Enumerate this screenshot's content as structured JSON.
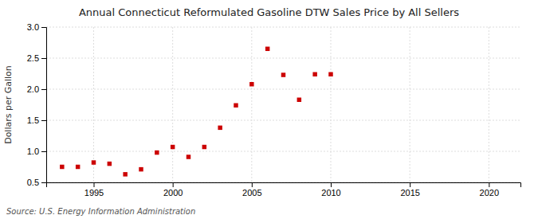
{
  "chart_data": {
    "type": "scatter",
    "title": "Annual Connecticut Reformulated Gasoline DTW Sales Price by All Sellers",
    "ylabel": "Dollars per Gallon",
    "annotations": [
      "Source: U.S. Energy Information Administration"
    ],
    "x": [
      1993,
      1994,
      1995,
      1996,
      1997,
      1998,
      1999,
      2000,
      2001,
      2002,
      2003,
      2004,
      2005,
      2006,
      2007,
      2008,
      2009,
      2010
    ],
    "values": [
      0.75,
      0.75,
      0.82,
      0.8,
      0.63,
      0.71,
      0.98,
      1.07,
      0.91,
      1.07,
      1.38,
      1.74,
      2.08,
      2.65,
      2.23,
      1.83,
      2.24,
      2.24
    ],
    "color": "#cc0000",
    "marker": "square",
    "xlim": [
      1992,
      2022
    ],
    "ylim": [
      0.5,
      3.0
    ],
    "xticks": [
      1995,
      2000,
      2005,
      2010,
      2015,
      2020
    ],
    "yticks": [
      0.5,
      {
        "value": 1.0,
        "label": "1.0"
      },
      1.5,
      {
        "value": 2.0,
        "label": "2.0"
      },
      2.5,
      {
        "value": 3.0,
        "label": "3.0"
      }
    ],
    "grid": true
  }
}
